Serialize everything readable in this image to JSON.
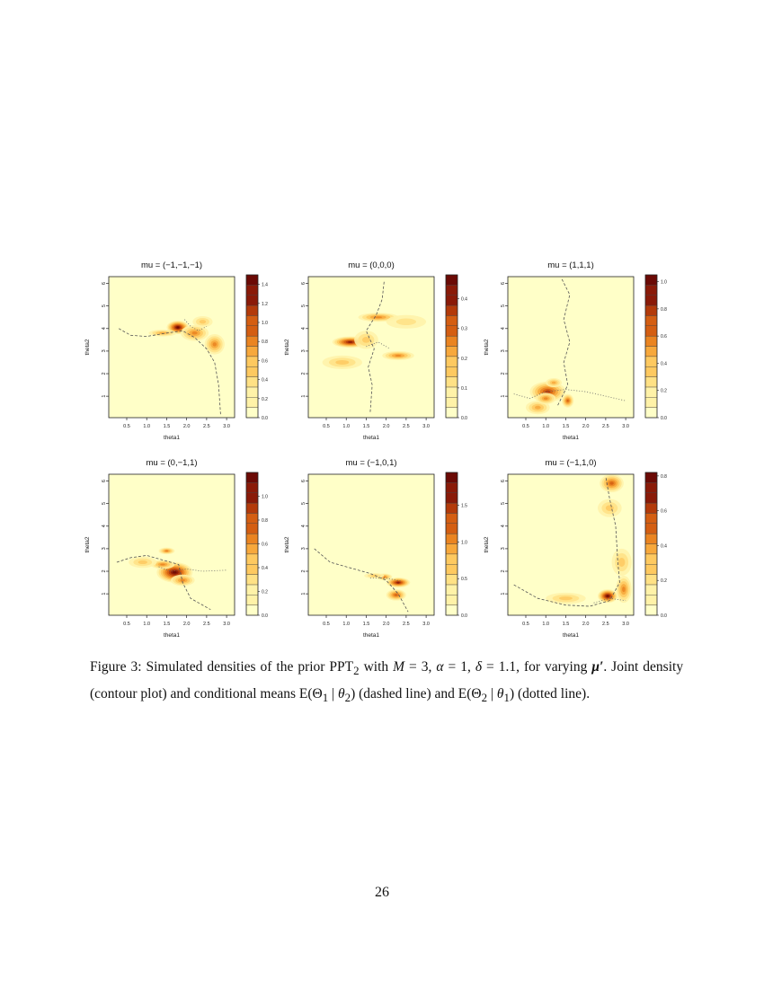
{
  "figure": {
    "x_axis_label": "theta1",
    "y_axis_label": "theta2",
    "x_ticks": [
      "0.5",
      "1.0",
      "1.5",
      "2.0",
      "2.5",
      "3.0"
    ],
    "y_ticks": [
      "1",
      "2",
      "3",
      "4",
      "5",
      "6"
    ],
    "colormap": [
      "#ffffc8",
      "#fff2a8",
      "#ffe185",
      "#fec960",
      "#f7a83c",
      "#ea8421",
      "#d45e12",
      "#b33a0a",
      "#8a1a08",
      "#6b0a05"
    ],
    "panels": [
      {
        "title": "mu = (−1,−1,−1)",
        "colorbar_ticks": [
          "0.0",
          "0.2",
          "0.4",
          "0.6",
          "0.8",
          "1.0",
          "1.2",
          "1.4"
        ],
        "colorbar_max": 1.5
      },
      {
        "title": "mu = (0,0,0)",
        "colorbar_ticks": [
          "0.0",
          "0.1",
          "0.2",
          "0.3",
          "0.4"
        ],
        "colorbar_max": 0.48
      },
      {
        "title": "mu = (1,1,1)",
        "colorbar_ticks": [
          "0.0",
          "0.2",
          "0.4",
          "0.6",
          "0.8",
          "1.0"
        ],
        "colorbar_max": 1.05
      },
      {
        "title": "mu = (0,−1,1)",
        "colorbar_ticks": [
          "0.0",
          "0.2",
          "0.4",
          "0.6",
          "0.8",
          "1.0"
        ],
        "colorbar_max": 1.2
      },
      {
        "title": "mu = (−1,0,1)",
        "colorbar_ticks": [
          "0.0",
          "0.5",
          "1.0",
          "1.5"
        ],
        "colorbar_max": 1.95
      },
      {
        "title": "mu = (−1,1,0)",
        "colorbar_ticks": [
          "0.0",
          "0.2",
          "0.4",
          "0.6",
          "0.8"
        ],
        "colorbar_max": 0.82
      }
    ]
  },
  "caption": {
    "label": "Figure 3:",
    "text_1": "Simulated densities of the prior PPT",
    "sub_1": "2",
    "text_2": "with",
    "m_sym": "M",
    "m_val": "= 3,",
    "alpha_sym": "α",
    "alpha_val": "= 1,",
    "delta_sym": "δ",
    "delta_val": "= 1.1, for varying",
    "mu_sym": "μ′",
    "text_3": ". Joint density (contour plot) and conditional means E(Θ",
    "sub_a": "1",
    "text_4": "|",
    "theta_a": "θ",
    "sub_b": "2",
    "text_5": ") (dashed line) and E(Θ",
    "sub_c": "2",
    "text_6": "|",
    "theta_b": "θ",
    "sub_d": "1",
    "text_7": ") (dotted line)."
  },
  "page_number": "26"
}
